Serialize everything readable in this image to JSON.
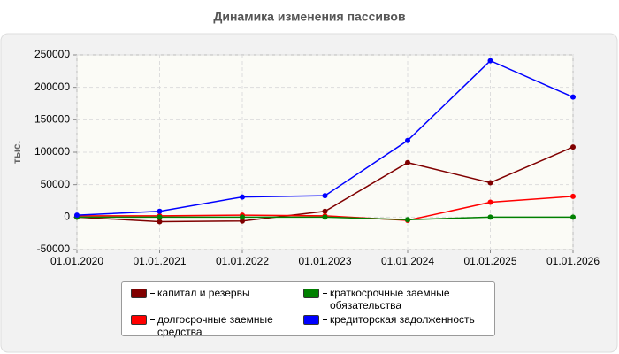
{
  "chart_data": {
    "type": "line",
    "title": "Динамика изменения пассивов",
    "y_label": "тыс.",
    "categories": [
      "01.01.2020",
      "01.01.2021",
      "01.01.2022",
      "01.01.2023",
      "01.01.2024",
      "01.01.2025",
      "01.01.2026"
    ],
    "series": [
      {
        "name": "капитал и резервы",
        "color": "#800000",
        "values": [
          0,
          -7000,
          -6000,
          9000,
          84000,
          53000,
          108000
        ]
      },
      {
        "name": "долгосрочные заемные средства",
        "color": "#ff0000",
        "values": [
          2000,
          2000,
          3000,
          2000,
          -5000,
          23000,
          32000
        ]
      },
      {
        "name": "краткосрочные заемные обязательства",
        "color": "#008000",
        "values": [
          0,
          0,
          0,
          0,
          -4000,
          0,
          0
        ]
      },
      {
        "name": "кредиторская задолженность",
        "color": "#0000ff",
        "values": [
          3000,
          9000,
          31000,
          33000,
          118000,
          241000,
          185000
        ]
      }
    ],
    "ylim": [
      -50000,
      250000
    ],
    "yticks": [
      -50000,
      0,
      50000,
      100000,
      150000,
      200000,
      250000
    ],
    "grid": true
  }
}
